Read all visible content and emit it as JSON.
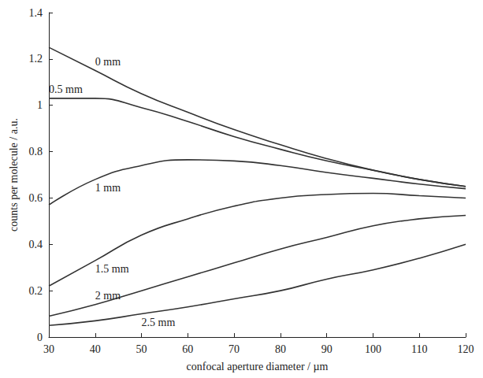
{
  "chart_data": {
    "type": "line",
    "x_label": "confocal aperture diameter / µm",
    "y_label": "counts per molecule / a.u.",
    "x": [
      30,
      40,
      50,
      60,
      70,
      80,
      90,
      100,
      110,
      120
    ],
    "series": [
      {
        "name": "0 mm",
        "color": "#333333",
        "values": [
          1.25,
          1.15,
          1.05,
          0.97,
          0.895,
          0.83,
          0.77,
          0.72,
          0.68,
          0.65
        ]
      },
      {
        "name": "0.5 mm",
        "color": "#333333",
        "values": [
          1.03,
          1.03,
          0.99,
          0.93,
          0.865,
          0.81,
          0.76,
          0.72,
          0.68,
          0.65
        ]
      },
      {
        "name": "1 mm",
        "color": "#333333",
        "values": [
          0.57,
          0.68,
          0.74,
          0.765,
          0.76,
          0.74,
          0.71,
          0.685,
          0.66,
          0.64
        ]
      },
      {
        "name": "1.5 mm",
        "color": "#333333",
        "values": [
          0.22,
          0.33,
          0.44,
          0.51,
          0.565,
          0.6,
          0.615,
          0.62,
          0.61,
          0.6
        ]
      },
      {
        "name": "2 mm",
        "color": "#333333",
        "values": [
          0.09,
          0.14,
          0.2,
          0.26,
          0.32,
          0.38,
          0.43,
          0.48,
          0.51,
          0.525
        ]
      },
      {
        "name": "2.5 mm",
        "color": "#333333",
        "values": [
          0.05,
          0.07,
          0.1,
          0.13,
          0.165,
          0.2,
          0.25,
          0.29,
          0.34,
          0.4
        ]
      }
    ],
    "xlim": [
      30,
      120
    ],
    "xticks": [
      30,
      40,
      50,
      60,
      70,
      80,
      90,
      100,
      110,
      120
    ],
    "ylim": [
      0,
      1.4
    ],
    "yticks": [
      0,
      0.2,
      0.4,
      0.6,
      0.8,
      1,
      1.2,
      1.4
    ],
    "grid": false,
    "line_style": "solid"
  }
}
